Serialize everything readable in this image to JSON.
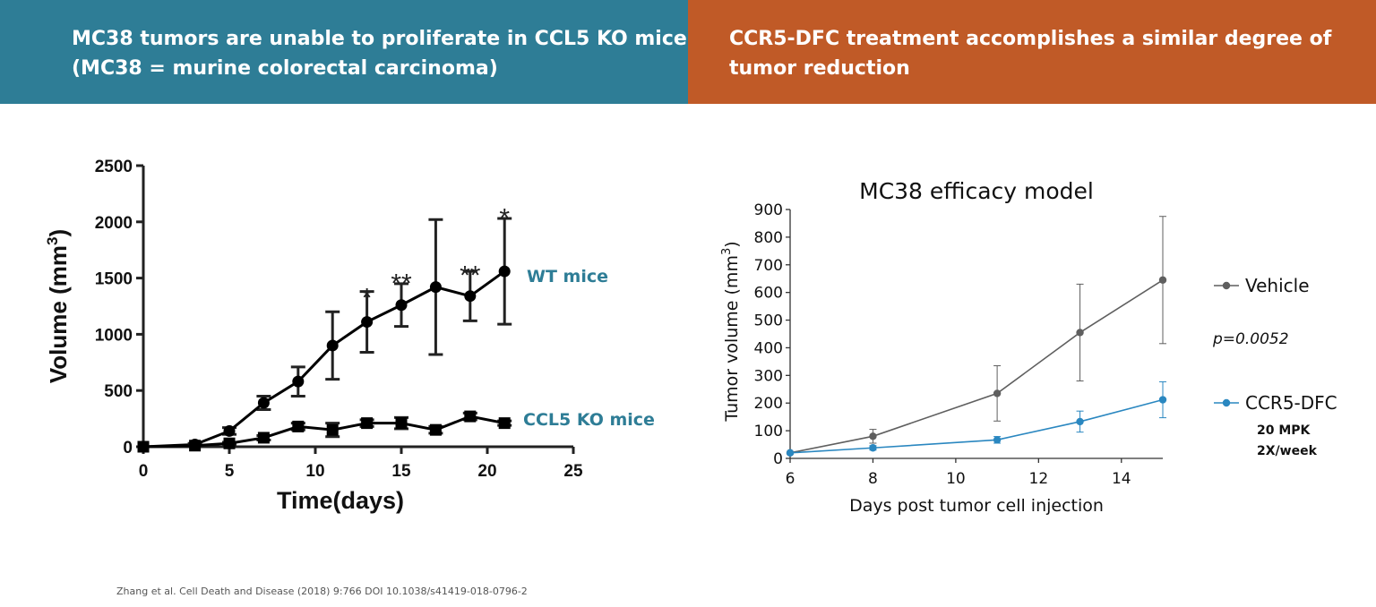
{
  "banners": {
    "left": {
      "line1": "MC38 tumors are unable to proliferate in CCL5 KO mice",
      "line2": "(MC38 = murine colorectal carcinoma)"
    },
    "right": {
      "line1": "CCR5-DFC treatment accomplishes a similar degree of",
      "line2": "tumor reduction"
    }
  },
  "citation": "Zhang et al. Cell Death and Disease (2018) 9:766 DOI 10.1038/s41419-018-0796-2",
  "chart_data": [
    {
      "type": "line",
      "title": "",
      "xlabel": "Time(days)",
      "ylabel": "Volume  (mm³)",
      "ylabel_main": "Volume  (mm",
      "ylabel_sup": "3",
      "ylabel_end": ")",
      "xlim": [
        0,
        25
      ],
      "ylim": [
        0,
        2500
      ],
      "xticks": [
        0,
        5,
        10,
        15,
        20,
        25
      ],
      "yticks": [
        0,
        500,
        1000,
        1500,
        2000,
        2500
      ],
      "grid": false,
      "legend": "inline labels at right end of each series",
      "series": [
        {
          "name": "WT mice",
          "marker": "circle",
          "color": "#000000",
          "label_color": "#2e7d96",
          "x": [
            0,
            3,
            5,
            7,
            9,
            11,
            13,
            15,
            17,
            19,
            21
          ],
          "y": [
            0,
            20,
            140,
            390,
            580,
            900,
            1110,
            1260,
            1420,
            1340,
            1560
          ],
          "err": [
            0,
            10,
            30,
            60,
            130,
            300,
            270,
            190,
            600,
            220,
            470
          ]
        },
        {
          "name": "CCL5 KO mice",
          "marker": "square",
          "color": "#000000",
          "label_color": "#2e7d96",
          "x": [
            0,
            3,
            5,
            7,
            9,
            11,
            13,
            15,
            17,
            19,
            21
          ],
          "y": [
            0,
            10,
            30,
            80,
            180,
            150,
            210,
            210,
            150,
            270,
            210
          ],
          "err": [
            0,
            5,
            10,
            20,
            30,
            60,
            30,
            50,
            30,
            30,
            20
          ]
        }
      ],
      "annotations": [
        {
          "text": "*",
          "x": 13,
          "y": 1420
        },
        {
          "text": "**",
          "x": 15,
          "y": 1550
        },
        {
          "text": "**",
          "x": 19,
          "y": 1620
        },
        {
          "text": "*",
          "x": 21,
          "y": 2130
        }
      ]
    },
    {
      "type": "line",
      "title": "MC38 efficacy model",
      "xlabel": "Days post tumor cell injection",
      "ylabel": "Tumor volume (mm³)",
      "ylabel_main": "Tumor volume (mm",
      "ylabel_sup": "3",
      "ylabel_end": ")",
      "xlim": [
        6,
        15
      ],
      "ylim": [
        0,
        900
      ],
      "xticks": [
        6,
        8,
        10,
        12,
        14
      ],
      "yticks": [
        0,
        100,
        200,
        300,
        400,
        500,
        600,
        700,
        800,
        900
      ],
      "grid": false,
      "legend": "right",
      "series": [
        {
          "name": "Vehicle",
          "color": "#5f5f5f",
          "x": [
            6,
            8,
            11,
            13,
            15
          ],
          "y": [
            20,
            80,
            235,
            455,
            645
          ],
          "err": [
            0,
            25,
            100,
            175,
            230
          ]
        },
        {
          "name": "CCR5-DFC",
          "note_line1": "20 MPK",
          "note_line2": "2X/week",
          "color": "#2a87c0",
          "x": [
            6,
            8,
            11,
            13,
            15
          ],
          "y": [
            20,
            38,
            67,
            133,
            212
          ],
          "err": [
            0,
            8,
            12,
            38,
            65
          ]
        }
      ],
      "pvalue": "p=0.0052"
    }
  ]
}
